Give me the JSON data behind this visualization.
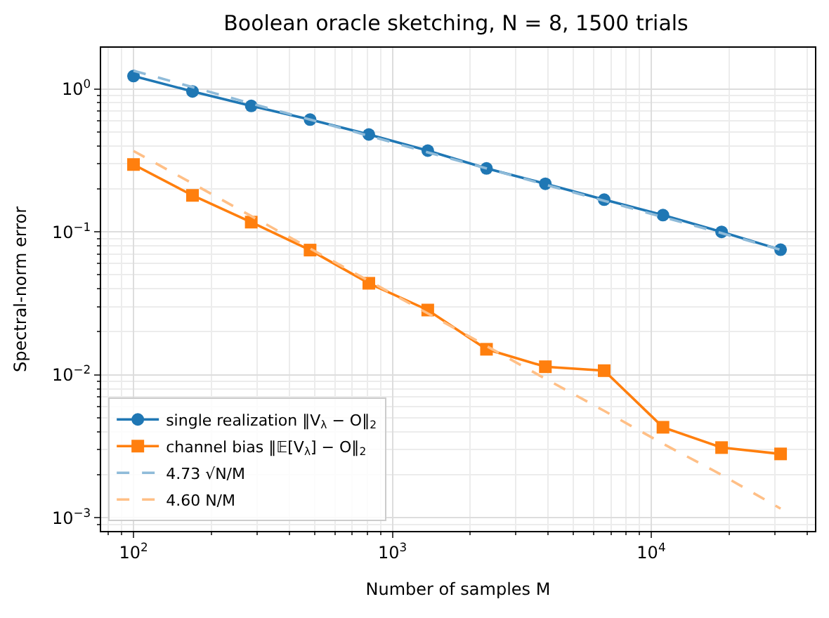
{
  "chart_data": {
    "type": "line",
    "title": "Boolean oracle sketching, N = 8, 1500 trials",
    "xlabel": "Number of samples M",
    "ylabel": "Spectral-norm error",
    "x": [
      100,
      169,
      285,
      481,
      811,
      1370,
      2310,
      3900,
      6580,
      11100,
      18700,
      31600
    ],
    "series": [
      {
        "name": "single realization ‖V$_{λ}$ − O‖$_{2}$",
        "color": "#1f77b4",
        "marker": "circle",
        "line_style": "solid",
        "values": [
          1.23,
          0.96,
          0.76,
          0.61,
          0.48,
          0.37,
          0.278,
          0.217,
          0.168,
          0.131,
          0.1,
          0.075
        ]
      },
      {
        "name": "channel bias ‖𝔼[V$_{λ}$] − O‖$_{2}$",
        "color": "#ff7f0e",
        "marker": "square",
        "line_style": "solid",
        "values": [
          0.296,
          0.18,
          0.117,
          0.0746,
          0.0437,
          0.0284,
          0.0151,
          0.0114,
          0.0107,
          0.0043,
          0.0031,
          0.0028
        ]
      },
      {
        "name": "4.73 √N/M",
        "color": "#8fbbd9",
        "marker": "none",
        "line_style": "dashed",
        "values": [
          1.34,
          1.03,
          0.79,
          0.61,
          0.47,
          0.36,
          0.278,
          0.214,
          0.165,
          0.127,
          0.098,
          0.075
        ]
      },
      {
        "name": "4.60 N/M",
        "color": "#ffbf86",
        "marker": "none",
        "line_style": "dashed",
        "values": [
          0.368,
          0.218,
          0.129,
          0.0765,
          0.0454,
          0.0269,
          0.0159,
          0.0094,
          0.0056,
          0.0033,
          0.002,
          0.00116
        ]
      }
    ],
    "log": "xy",
    "xlim": [
      75,
      42900
    ],
    "ylim": [
      0.00081,
      1.94
    ],
    "xticks": [
      {
        "value": 100,
        "label": "10$^{2}$"
      },
      {
        "value": 1000,
        "label": "10$^{3}$"
      },
      {
        "value": 10000,
        "label": "10$^{4}$"
      }
    ],
    "yticks": [
      {
        "value": 0.001,
        "label": "10$^{−3}$"
      },
      {
        "value": 0.01,
        "label": "10$^{−2}$"
      },
      {
        "value": 0.1,
        "label": "10$^{−1}$"
      },
      {
        "value": 1,
        "label": "10$^{0}$"
      }
    ],
    "grid": true,
    "legend": "bottom left"
  }
}
